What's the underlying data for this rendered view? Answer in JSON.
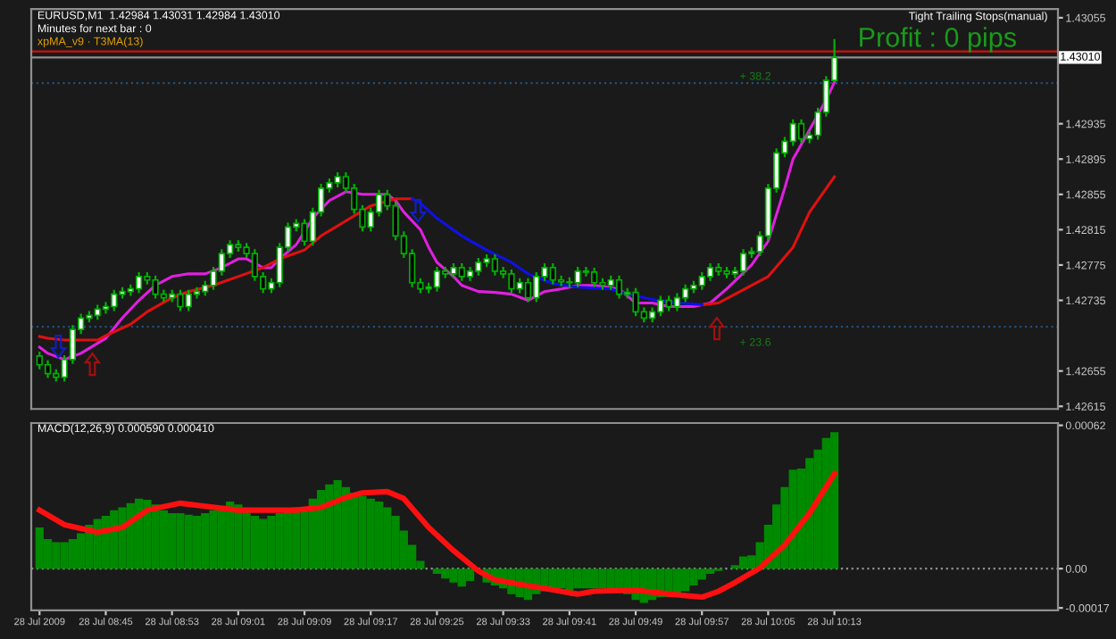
{
  "chart_data": [
    {
      "type": "candlestick",
      "title": "EURUSD,M1  1.42984 1.43031 1.42984 1.43010",
      "annotations": [
        "Minutes for next bar : 0",
        "xpMA_v9 · T3MA(13)",
        "Tight Trailing Stops(manual)",
        "Profit : 0 pips",
        "+ 38.2",
        "+ 23.6"
      ],
      "x": [
        "2009-07-28T08:37",
        "2009-07-28T08:38",
        "2009-07-28T08:39",
        "2009-07-28T08:40",
        "2009-07-28T08:41",
        "2009-07-28T08:42",
        "2009-07-28T08:43",
        "2009-07-28T08:44",
        "2009-07-28T08:45",
        "2009-07-28T08:46",
        "2009-07-28T08:47",
        "2009-07-28T08:48",
        "2009-07-28T08:49",
        "2009-07-28T08:50",
        "2009-07-28T08:51",
        "2009-07-28T08:52",
        "2009-07-28T08:53",
        "2009-07-28T08:54",
        "2009-07-28T08:55",
        "2009-07-28T08:56",
        "2009-07-28T08:57",
        "2009-07-28T08:58",
        "2009-07-28T08:59",
        "2009-07-28T09:00",
        "2009-07-28T09:01",
        "2009-07-28T09:02",
        "2009-07-28T09:03",
        "2009-07-28T09:04",
        "2009-07-28T09:05",
        "2009-07-28T09:06",
        "2009-07-28T09:07",
        "2009-07-28T09:08",
        "2009-07-28T09:09",
        "2009-07-28T09:10",
        "2009-07-28T09:11",
        "2009-07-28T09:12",
        "2009-07-28T09:13",
        "2009-07-28T09:14",
        "2009-07-28T09:15",
        "2009-07-28T09:16",
        "2009-07-28T09:17",
        "2009-07-28T09:18",
        "2009-07-28T09:19",
        "2009-07-28T09:20",
        "2009-07-28T09:21",
        "2009-07-28T09:22",
        "2009-07-28T09:23",
        "2009-07-28T09:24",
        "2009-07-28T09:25",
        "2009-07-28T09:26",
        "2009-07-28T09:27",
        "2009-07-28T09:28",
        "2009-07-28T09:29",
        "2009-07-28T09:30",
        "2009-07-28T09:31",
        "2009-07-28T09:32",
        "2009-07-28T09:33",
        "2009-07-28T09:34",
        "2009-07-28T09:35",
        "2009-07-28T09:36",
        "2009-07-28T09:37",
        "2009-07-28T09:38",
        "2009-07-28T09:39",
        "2009-07-28T09:40",
        "2009-07-28T09:41",
        "2009-07-28T09:42",
        "2009-07-28T09:43",
        "2009-07-28T09:44",
        "2009-07-28T09:45",
        "2009-07-28T09:46",
        "2009-07-28T09:47",
        "2009-07-28T09:48",
        "2009-07-28T09:49",
        "2009-07-28T09:50",
        "2009-07-28T09:51",
        "2009-07-28T09:52",
        "2009-07-28T09:53",
        "2009-07-28T09:54",
        "2009-07-28T09:55",
        "2009-07-28T09:56",
        "2009-07-28T09:57",
        "2009-07-28T09:58",
        "2009-07-28T09:59",
        "2009-07-28T10:00",
        "2009-07-28T10:01",
        "2009-07-28T10:02",
        "2009-07-28T10:03",
        "2009-07-28T10:04",
        "2009-07-28T10:05",
        "2009-07-28T10:06",
        "2009-07-28T10:07",
        "2009-07-28T10:08",
        "2009-07-28T10:09",
        "2009-07-28T10:10",
        "2009-07-28T10:11",
        "2009-07-28T10:12",
        "2009-07-28T10:13"
      ],
      "ohlc": [
        [
          1.42672,
          1.42677,
          1.42657,
          1.42662
        ],
        [
          1.42662,
          1.42667,
          1.42647,
          1.42652
        ],
        [
          1.42652,
          1.42657,
          1.42643,
          1.42648
        ],
        [
          1.42648,
          1.42673,
          1.42643,
          1.42668
        ],
        [
          1.42668,
          1.42707,
          1.42663,
          1.42702
        ],
        [
          1.42702,
          1.4272,
          1.42697,
          1.42715
        ],
        [
          1.42715,
          1.42723,
          1.4271,
          1.42718
        ],
        [
          1.42718,
          1.4273,
          1.42713,
          1.42725
        ],
        [
          1.42725,
          1.42733,
          1.4272,
          1.42728
        ],
        [
          1.42728,
          1.42747,
          1.42723,
          1.42742
        ],
        [
          1.42742,
          1.4275,
          1.42737,
          1.42745
        ],
        [
          1.42745,
          1.42753,
          1.4274,
          1.42748
        ],
        [
          1.42748,
          1.42767,
          1.42743,
          1.42762
        ],
        [
          1.42762,
          1.42767,
          1.42753,
          1.42758
        ],
        [
          1.42758,
          1.42763,
          1.42737,
          1.42742
        ],
        [
          1.42742,
          1.42747,
          1.42733,
          1.42738
        ],
        [
          1.42738,
          1.42747,
          1.42733,
          1.42742
        ],
        [
          1.42742,
          1.42747,
          1.42723,
          1.42728
        ],
        [
          1.42728,
          1.42747,
          1.42723,
          1.42742
        ],
        [
          1.42742,
          1.4275,
          1.42737,
          1.42745
        ],
        [
          1.42745,
          1.42757,
          1.4274,
          1.42752
        ],
        [
          1.42752,
          1.42773,
          1.42747,
          1.42768
        ],
        [
          1.42768,
          1.42793,
          1.42763,
          1.42788
        ],
        [
          1.42788,
          1.42803,
          1.42783,
          1.42798
        ],
        [
          1.42798,
          1.42803,
          1.4279,
          1.42795
        ],
        [
          1.42795,
          1.428,
          1.42783,
          1.42788
        ],
        [
          1.42788,
          1.42793,
          1.42757,
          1.42762
        ],
        [
          1.42762,
          1.42767,
          1.42743,
          1.42748
        ],
        [
          1.42748,
          1.4276,
          1.42743,
          1.42755
        ],
        [
          1.42755,
          1.428,
          1.4275,
          1.42795
        ],
        [
          1.42795,
          1.42823,
          1.4279,
          1.42818
        ],
        [
          1.42818,
          1.42827,
          1.42813,
          1.42822
        ],
        [
          1.42822,
          1.42827,
          1.42797,
          1.42802
        ],
        [
          1.42802,
          1.4284,
          1.42797,
          1.42835
        ],
        [
          1.42835,
          1.42867,
          1.4283,
          1.42862
        ],
        [
          1.42862,
          1.42873,
          1.42857,
          1.42868
        ],
        [
          1.42868,
          1.4288,
          1.42863,
          1.42875
        ],
        [
          1.42875,
          1.4288,
          1.42857,
          1.42862
        ],
        [
          1.42862,
          1.42867,
          1.42833,
          1.42838
        ],
        [
          1.42838,
          1.42843,
          1.42813,
          1.42818
        ],
        [
          1.42818,
          1.4284,
          1.42813,
          1.42835
        ],
        [
          1.42835,
          1.4286,
          1.4283,
          1.42855
        ],
        [
          1.42855,
          1.4286,
          1.42837,
          1.42842
        ],
        [
          1.42842,
          1.42847,
          1.42803,
          1.42808
        ],
        [
          1.42808,
          1.42813,
          1.42783,
          1.42788
        ],
        [
          1.42788,
          1.42793,
          1.4275,
          1.42755
        ],
        [
          1.42755,
          1.4276,
          1.42743,
          1.42748
        ],
        [
          1.42748,
          1.42755,
          1.42743,
          1.4275
        ],
        [
          1.4275,
          1.42773,
          1.42745,
          1.42768
        ],
        [
          1.42768,
          1.42773,
          1.4276,
          1.42765
        ],
        [
          1.42765,
          1.42777,
          1.4276,
          1.42772
        ],
        [
          1.42772,
          1.42777,
          1.42757,
          1.42762
        ],
        [
          1.42762,
          1.42773,
          1.42757,
          1.42768
        ],
        [
          1.42768,
          1.42783,
          1.42763,
          1.42778
        ],
        [
          1.42778,
          1.42787,
          1.42773,
          1.42782
        ],
        [
          1.42782,
          1.42787,
          1.42763,
          1.42768
        ],
        [
          1.42768,
          1.42773,
          1.4276,
          1.42765
        ],
        [
          1.42765,
          1.4277,
          1.42743,
          1.42748
        ],
        [
          1.42748,
          1.4276,
          1.42743,
          1.42755
        ],
        [
          1.42755,
          1.4276,
          1.42733,
          1.42738
        ],
        [
          1.42738,
          1.42767,
          1.42733,
          1.42762
        ],
        [
          1.42762,
          1.42777,
          1.42757,
          1.42772
        ],
        [
          1.42772,
          1.42777,
          1.42753,
          1.42758
        ],
        [
          1.42758,
          1.42763,
          1.42751,
          1.42756
        ],
        [
          1.42756,
          1.42761,
          1.4275,
          1.42755
        ],
        [
          1.42755,
          1.42773,
          1.4275,
          1.42768
        ],
        [
          1.42768,
          1.42773,
          1.42762,
          1.42767
        ],
        [
          1.42767,
          1.42772,
          1.4275,
          1.42755
        ],
        [
          1.42755,
          1.4276,
          1.42747,
          1.42752
        ],
        [
          1.42752,
          1.42763,
          1.42747,
          1.42758
        ],
        [
          1.42758,
          1.42763,
          1.42737,
          1.42742
        ],
        [
          1.42742,
          1.42749,
          1.42737,
          1.42744
        ],
        [
          1.42744,
          1.42749,
          1.42717,
          1.42722
        ],
        [
          1.42722,
          1.42727,
          1.4271,
          1.42715
        ],
        [
          1.42715,
          1.42727,
          1.4271,
          1.42722
        ],
        [
          1.42722,
          1.4274,
          1.42717,
          1.42735
        ],
        [
          1.42735,
          1.4274,
          1.42723,
          1.42728
        ],
        [
          1.42728,
          1.42743,
          1.42723,
          1.42738
        ],
        [
          1.42738,
          1.42753,
          1.42733,
          1.42748
        ],
        [
          1.42748,
          1.42757,
          1.42743,
          1.42752
        ],
        [
          1.42752,
          1.42767,
          1.42747,
          1.42762
        ],
        [
          1.42762,
          1.42777,
          1.42757,
          1.42772
        ],
        [
          1.42772,
          1.42777,
          1.42763,
          1.42768
        ],
        [
          1.42768,
          1.42773,
          1.4276,
          1.42765
        ],
        [
          1.42765,
          1.42773,
          1.4276,
          1.42768
        ],
        [
          1.42768,
          1.42793,
          1.42763,
          1.42788
        ],
        [
          1.42788,
          1.42795,
          1.42783,
          1.4279
        ],
        [
          1.4279,
          1.42813,
          1.42785,
          1.42808
        ],
        [
          1.42808,
          1.42867,
          1.42803,
          1.42862
        ],
        [
          1.42862,
          1.42907,
          1.42857,
          1.42902
        ],
        [
          1.42902,
          1.4292,
          1.42897,
          1.42915
        ],
        [
          1.42915,
          1.4294,
          1.4291,
          1.42935
        ],
        [
          1.42935,
          1.4294,
          1.42913,
          1.42918
        ],
        [
          1.42918,
          1.42927,
          1.42913,
          1.42922
        ],
        [
          1.42922,
          1.42953,
          1.42917,
          1.42948
        ],
        [
          1.42948,
          1.42989,
          1.42943,
          1.42984
        ],
        [
          1.42984,
          1.43031,
          1.42984,
          1.4301
        ]
      ],
      "series": [
        {
          "type": "line",
          "color": "#e020e0",
          "x": [
            "2009-07-28T08:37",
            "2009-07-28T08:38",
            "2009-07-28T08:40",
            "2009-07-28T08:42",
            "2009-07-28T08:45",
            "2009-07-28T08:47",
            "2009-07-28T08:49",
            "2009-07-28T08:51",
            "2009-07-28T08:53",
            "2009-07-28T08:55",
            "2009-07-28T08:57",
            "2009-07-28T08:59",
            "2009-07-28T09:01",
            "2009-07-28T09:02",
            "2009-07-28T09:04",
            "2009-07-28T09:05",
            "2009-07-28T09:06",
            "2009-07-28T09:08",
            "2009-07-28T09:10",
            "2009-07-28T09:12",
            "2009-07-28T09:14",
            "2009-07-28T09:16",
            "2009-07-28T09:19",
            "2009-07-28T09:20",
            "2009-07-28T09:21",
            "2009-07-28T09:23",
            "2009-07-28T09:24",
            "2009-07-28T09:25",
            "2009-07-28T09:27",
            "2009-07-28T09:28",
            "2009-07-28T09:30",
            "2009-07-28T09:32",
            "2009-07-28T09:34",
            "2009-07-28T09:36",
            "2009-07-28T09:38",
            "2009-07-28T09:40",
            "2009-07-28T09:42",
            "2009-07-28T09:44",
            "2009-07-28T09:47",
            "2009-07-28T09:49",
            "2009-07-28T09:51",
            "2009-07-28T09:53",
            "2009-07-28T09:56",
            "2009-07-28T09:58",
            "2009-07-28T10:00",
            "2009-07-28T10:03",
            "2009-07-28T10:05",
            "2009-07-28T10:07",
            "2009-07-28T10:08",
            "2009-07-28T10:10",
            "2009-07-28T10:12",
            "2009-07-28T10:13"
          ],
          "values": [
            1.42682,
            1.42675,
            1.42668,
            1.42675,
            1.42692,
            1.42715,
            1.42735,
            1.42752,
            1.42762,
            1.42765,
            1.42765,
            1.42772,
            1.42782,
            1.42782,
            1.42772,
            1.42772,
            1.42782,
            1.42798,
            1.42828,
            1.42848,
            1.42858,
            1.42855,
            1.42855,
            1.42848,
            1.42835,
            1.42815,
            1.42795,
            1.42778,
            1.42762,
            1.42752,
            1.42745,
            1.42744,
            1.42742,
            1.42735,
            1.42745,
            1.42748,
            1.42752,
            1.42752,
            1.42748,
            1.42732,
            1.42732,
            1.42728,
            1.42728,
            1.42732,
            1.42748,
            1.42775,
            1.42802,
            1.42862,
            1.42895,
            1.42928,
            1.42962,
            1.42982
          ]
        },
        {
          "type": "line",
          "color": "#e01010",
          "x": [
            "2009-07-28T08:37",
            "2009-07-28T08:38",
            "2009-07-28T08:40",
            "2009-07-28T08:44",
            "2009-07-28T08:45",
            "2009-07-28T08:48",
            "2009-07-28T08:50",
            "2009-07-28T08:53",
            "2009-07-28T08:55",
            "2009-07-28T08:58",
            "2009-07-28T09:01",
            "2009-07-28T09:04",
            "2009-07-28T09:06",
            "2009-07-28T09:09",
            "2009-07-28T09:11",
            "2009-07-28T09:14",
            "2009-07-28T09:17",
            "2009-07-28T09:20",
            "2009-07-28T09:22",
            "2009-07-28T09:40",
            "2009-07-28T09:57",
            "2009-07-28T09:59",
            "2009-07-28T10:01",
            "2009-07-28T10:05",
            "2009-07-28T10:08",
            "2009-07-28T10:10",
            "2009-07-28T10:13"
          ],
          "values": [
            1.42694,
            1.42692,
            1.4269,
            1.4269,
            1.42695,
            1.42708,
            1.42722,
            1.42738,
            1.42745,
            1.42752,
            1.42762,
            1.42772,
            1.42782,
            1.42792,
            1.42808,
            1.42825,
            1.42842,
            1.4285,
            1.4285,
            null,
            1.4273,
            1.42732,
            1.42742,
            1.42762,
            1.42795,
            1.42835,
            1.42875
          ]
        },
        {
          "type": "line",
          "color": "#1010e8",
          "x": [
            "2009-07-28T09:22",
            "2009-07-28T09:23",
            "2009-07-28T09:25",
            "2009-07-28T09:28",
            "2009-07-28T09:31",
            "2009-07-28T09:34",
            "2009-07-28T09:36",
            "2009-07-28T09:39",
            "2009-07-28T09:42",
            "2009-07-28T09:46",
            "2009-07-28T09:48",
            "2009-07-28T09:51",
            "2009-07-28T09:54",
            "2009-07-28T09:57"
          ],
          "values": [
            1.4285,
            1.42845,
            1.42828,
            1.42808,
            1.42792,
            1.42778,
            1.42765,
            1.42754,
            1.4275,
            1.42748,
            1.42742,
            1.42736,
            1.42732,
            1.4273
          ]
        }
      ],
      "ref_lines": [
        {
          "axis": "y",
          "value": 1.43017,
          "color": "#d01010",
          "line_style": "solid"
        },
        {
          "axis": "y",
          "value": 1.4301,
          "label": "1.43010",
          "color": "#909090",
          "line_style": "solid"
        },
        {
          "axis": "y",
          "value": 1.42981,
          "color": "#20507a",
          "line_style": "dotted"
        },
        {
          "axis": "y",
          "value": 1.42705,
          "color": "#20507a",
          "line_style": "dotted"
        }
      ],
      "xlim": [
        "2009-07-28T08:36",
        "2009-07-28T10:40"
      ],
      "ylim": [
        1.42612,
        1.43065
      ],
      "yticks": [
        1.43055,
        1.42935,
        1.42895,
        1.42855,
        1.42815,
        1.42775,
        1.42735,
        1.42655,
        1.42615
      ],
      "tick_labels": "y",
      "grid": false
    },
    {
      "type": "bar",
      "title": "MACD(12,26,9) 0.000590 0.000410",
      "color": "#008a00",
      "x": [
        "2009-07-28T08:37",
        "2009-07-28T08:38",
        "2009-07-28T08:39",
        "2009-07-28T08:40",
        "2009-07-28T08:41",
        "2009-07-28T08:42",
        "2009-07-28T08:43",
        "2009-07-28T08:44",
        "2009-07-28T08:45",
        "2009-07-28T08:46",
        "2009-07-28T08:47",
        "2009-07-28T08:48",
        "2009-07-28T08:49",
        "2009-07-28T08:50",
        "2009-07-28T08:51",
        "2009-07-28T08:52",
        "2009-07-28T08:53",
        "2009-07-28T08:54",
        "2009-07-28T08:55",
        "2009-07-28T08:56",
        "2009-07-28T08:57",
        "2009-07-28T08:58",
        "2009-07-28T08:59",
        "2009-07-28T09:00",
        "2009-07-28T09:01",
        "2009-07-28T09:02",
        "2009-07-28T09:03",
        "2009-07-28T09:04",
        "2009-07-28T09:05",
        "2009-07-28T09:06",
        "2009-07-28T09:07",
        "2009-07-28T09:08",
        "2009-07-28T09:09",
        "2009-07-28T09:10",
        "2009-07-28T09:11",
        "2009-07-28T09:12",
        "2009-07-28T09:13",
        "2009-07-28T09:14",
        "2009-07-28T09:15",
        "2009-07-28T09:16",
        "2009-07-28T09:17",
        "2009-07-28T09:18",
        "2009-07-28T09:19",
        "2009-07-28T09:20",
        "2009-07-28T09:21",
        "2009-07-28T09:22",
        "2009-07-28T09:23",
        "2009-07-28T09:24",
        "2009-07-28T09:25",
        "2009-07-28T09:26",
        "2009-07-28T09:27",
        "2009-07-28T09:28",
        "2009-07-28T09:29",
        "2009-07-28T09:30",
        "2009-07-28T09:31",
        "2009-07-28T09:32",
        "2009-07-28T09:33",
        "2009-07-28T09:34",
        "2009-07-28T09:35",
        "2009-07-28T09:36",
        "2009-07-28T09:37",
        "2009-07-28T09:38",
        "2009-07-28T09:39",
        "2009-07-28T09:40",
        "2009-07-28T09:41",
        "2009-07-28T09:42",
        "2009-07-28T09:43",
        "2009-07-28T09:44",
        "2009-07-28T09:45",
        "2009-07-28T09:46",
        "2009-07-28T09:47",
        "2009-07-28T09:48",
        "2009-07-28T09:49",
        "2009-07-28T09:50",
        "2009-07-28T09:51",
        "2009-07-28T09:52",
        "2009-07-28T09:53",
        "2009-07-28T09:54",
        "2009-07-28T09:55",
        "2009-07-28T09:56",
        "2009-07-28T09:57",
        "2009-07-28T09:58",
        "2009-07-28T09:59",
        "2009-07-28T10:00",
        "2009-07-28T10:01",
        "2009-07-28T10:02",
        "2009-07-28T10:03",
        "2009-07-28T10:04",
        "2009-07-28T10:05",
        "2009-07-28T10:06",
        "2009-07-28T10:07",
        "2009-07-28T10:08",
        "2009-07-28T10:09",
        "2009-07-28T10:10",
        "2009-07-28T10:11",
        "2009-07-28T10:12",
        "2009-07-28T10:13"
      ],
      "values": [
        0.000178,
        0.000128,
        0.000115,
        0.000115,
        0.000128,
        0.000153,
        0.00019,
        0.000215,
        0.000228,
        0.000253,
        0.000265,
        0.000283,
        0.000303,
        0.000298,
        0.000278,
        0.000253,
        0.00024,
        0.00024,
        0.000233,
        0.000228,
        0.00024,
        0.000253,
        0.000265,
        0.00029,
        0.000278,
        0.000253,
        0.000228,
        0.000215,
        0.000228,
        0.00024,
        0.000253,
        0.000265,
        0.000265,
        0.000303,
        0.00034,
        0.000365,
        0.000383,
        0.000353,
        0.000328,
        0.000315,
        0.000303,
        0.00029,
        0.000265,
        0.000228,
        0.000165,
        0.000103,
        3.3e-05,
        0,
        -2.3e-05,
        -4.3e-05,
        -6e-05,
        -7.8e-05,
        -5.3e-05,
        null,
        -6e-05,
        -7.3e-05,
        -8.5e-05,
        -0.00011,
        -0.000123,
        -0.000135,
        -0.00011,
        -9.8e-05,
        -8.5e-05,
        -8.5e-05,
        -9.8e-05,
        -8.5e-05,
        -8.5e-05,
        -8.5e-05,
        -8.5e-05,
        -8.5e-05,
        -9.8e-05,
        -0.00011,
        -0.000135,
        -0.000148,
        -0.000135,
        -0.000123,
        -0.000123,
        -0.00011,
        -9.8e-05,
        -7.3e-05,
        -4.8e-05,
        -2.3e-05,
        -1e-05,
        0,
        1.5e-05,
        5.3e-05,
        5.8e-05,
        0.000115,
        0.00019,
        0.000278,
        0.000353,
        0.000428,
        0.000433,
        0.000478,
        0.000515,
        0.000565,
        0.00059
      ],
      "series": [
        {
          "type": "line",
          "color": "#ff1010",
          "x": [
            "2009-07-28T08:37",
            "2009-07-28T08:40",
            "2009-07-28T08:44",
            "2009-07-28T08:47",
            "2009-07-28T08:50",
            "2009-07-28T08:54",
            "2009-07-28T08:57",
            "2009-07-28T09:01",
            "2009-07-28T09:04",
            "2009-07-28T09:08",
            "2009-07-28T09:11",
            "2009-07-28T09:14",
            "2009-07-28T09:16",
            "2009-07-28T09:19",
            "2009-07-28T09:21",
            "2009-07-28T09:24",
            "2009-07-28T09:27",
            "2009-07-28T09:30",
            "2009-07-28T09:32",
            "2009-07-28T09:35",
            "2009-07-28T09:38",
            "2009-07-28T09:41",
            "2009-07-28T09:42",
            "2009-07-28T09:44",
            "2009-07-28T09:49",
            "2009-07-28T09:53",
            "2009-07-28T09:57",
            "2009-07-28T09:59",
            "2009-07-28T10:01",
            "2009-07-28T10:04",
            "2009-07-28T10:07",
            "2009-07-28T10:10",
            "2009-07-28T10:13"
          ],
          "values": [
            0.000253,
            0.00019,
            0.000158,
            0.000178,
            0.000253,
            0.000283,
            0.00027,
            0.000253,
            0.000253,
            0.000253,
            0.000265,
            0.000308,
            0.000328,
            0.000333,
            0.000303,
            0.000178,
            7.8e-05,
            -1e-05,
            -4.8e-05,
            -6.8e-05,
            -8.5e-05,
            -0.000105,
            -0.00011,
            -9.8e-05,
            -9.3e-05,
            -0.00011,
            -0.000123,
            -9.8e-05,
            -6e-05,
            3e-06,
            0.000103,
            0.00024,
            0.00041
          ]
        }
      ],
      "ref_lines": [
        {
          "axis": "y",
          "value": 0,
          "color": "#909090",
          "line_style": "dotted"
        }
      ],
      "xlim": [
        "2009-07-28T08:36",
        "2009-07-28T10:40"
      ],
      "ylim": [
        -0.00018,
        0.00063
      ],
      "xticks": [
        {
          "value": "2009-07-28T08:37",
          "label": "28 Jul 2009"
        },
        {
          "value": "2009-07-28T08:45",
          "label": "28 Jul 08:45"
        },
        {
          "value": "2009-07-28T08:53",
          "label": "28 Jul 08:53"
        },
        {
          "value": "2009-07-28T09:01",
          "label": "28 Jul 09:01"
        },
        {
          "value": "2009-07-28T09:09",
          "label": "28 Jul 09:09"
        },
        {
          "value": "2009-07-28T09:17",
          "label": "28 Jul 09:17"
        },
        {
          "value": "2009-07-28T09:25",
          "label": "28 Jul 09:25"
        },
        {
          "value": "2009-07-28T09:33",
          "label": "28 Jul 09:33"
        },
        {
          "value": "2009-07-28T09:41",
          "label": "28 Jul 09:41"
        },
        {
          "value": "2009-07-28T09:49",
          "label": "28 Jul 09:49"
        },
        {
          "value": "2009-07-28T09:57",
          "label": "28 Jul 09:57"
        },
        {
          "value": "2009-07-28T10:05",
          "label": "28 Jul 10:05"
        },
        {
          "value": "2009-07-28T10:13",
          "label": "28 Jul 10:13"
        }
      ],
      "yticks": [
        {
          "value": 0.00062,
          "label": "0.00062"
        },
        {
          "value": 0,
          "label": "0.00"
        },
        {
          "value": -0.00017,
          "label": "-0.00017"
        }
      ],
      "grid": false
    }
  ]
}
